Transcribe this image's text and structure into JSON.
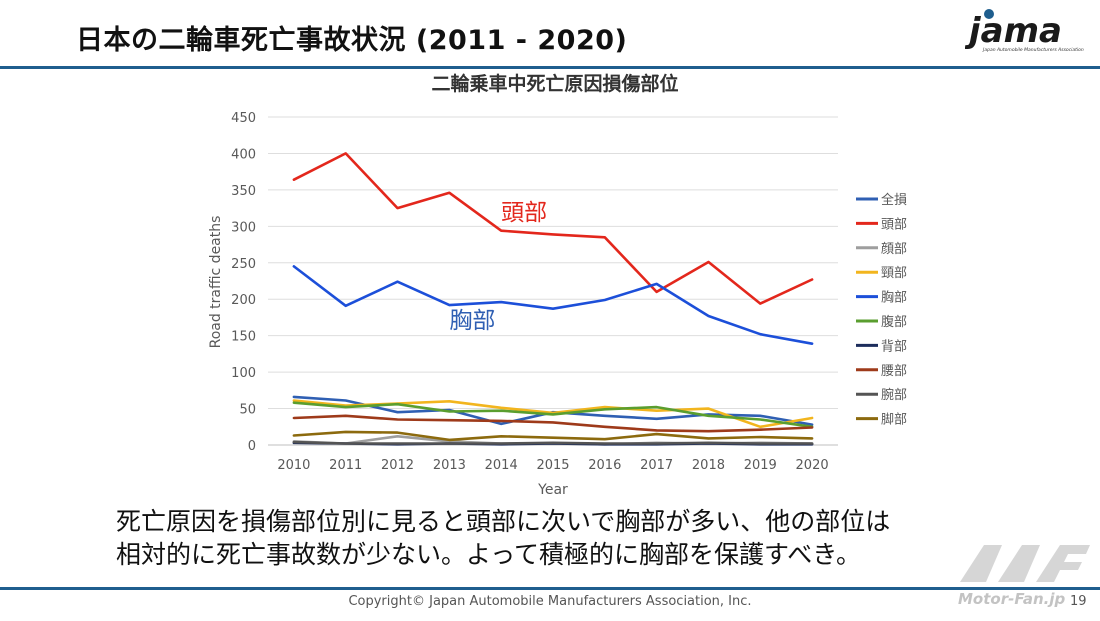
{
  "slide": {
    "title": "日本の二輪車死亡事故状況 (2011 - 2020)",
    "logo_text": "jama",
    "logo_subtext": "Japan Automobile Manufacturers Association",
    "caption_line1": "死亡原因を損傷部位別に見ると頭部に次いで胸部が多い、他の部位は",
    "caption_line2": "相対的に死亡事故数が少ない。よって積極的に胸部を保護すべき。",
    "footer": "Copyright© Japan Automobile Manufacturers Association, Inc.",
    "page_number": "19",
    "watermark": "Motor-Fan.jp"
  },
  "colors": {
    "rule": "#1f5e8e"
  },
  "chart_data": {
    "type": "line",
    "title": "二輪乗車中死亡原因損傷部位",
    "xlabel": "Year",
    "ylabel": "Road traffic deaths",
    "ylim": [
      0,
      450
    ],
    "yticks": [
      0,
      50,
      100,
      150,
      200,
      250,
      300,
      350,
      400,
      450
    ],
    "grid": true,
    "legend": "right",
    "x": [
      "2010",
      "2011",
      "2012",
      "2013",
      "2014",
      "2015",
      "2016",
      "2017",
      "2018",
      "2019",
      "2020"
    ],
    "series": [
      {
        "name": "全損",
        "color": "#2f5fb3",
        "values": [
          66,
          61,
          45,
          48,
          29,
          45,
          40,
          36,
          42,
          40,
          28
        ]
      },
      {
        "name": "頭部",
        "color": "#e3271c",
        "values": [
          364,
          400,
          325,
          346,
          294,
          289,
          285,
          210,
          251,
          194,
          227
        ]
      },
      {
        "name": "顔部",
        "color": "#9e9e9e",
        "values": [
          5,
          2,
          12,
          5,
          2,
          2,
          1,
          3,
          2,
          3,
          2
        ]
      },
      {
        "name": "頸部",
        "color": "#f2b51e",
        "values": [
          61,
          54,
          57,
          60,
          51,
          44,
          52,
          47,
          50,
          25,
          37
        ]
      },
      {
        "name": "胸部",
        "color": "#1c4fd9",
        "values": [
          245,
          191,
          224,
          192,
          196,
          187,
          199,
          221,
          177,
          152,
          139
        ]
      },
      {
        "name": "腹部",
        "color": "#5a9e2f",
        "values": [
          58,
          52,
          56,
          46,
          47,
          42,
          49,
          52,
          40,
          35,
          25
        ]
      },
      {
        "name": "背部",
        "color": "#1c2d5c",
        "values": [
          3,
          2,
          1,
          2,
          1,
          2,
          1,
          1,
          2,
          1,
          1
        ]
      },
      {
        "name": "腰部",
        "color": "#9e3a1a",
        "values": [
          37,
          40,
          35,
          34,
          33,
          31,
          25,
          20,
          19,
          21,
          24
        ]
      },
      {
        "name": "腕部",
        "color": "#545454",
        "values": [
          4,
          2,
          2,
          2,
          2,
          3,
          2,
          2,
          3,
          2,
          2
        ]
      },
      {
        "name": "脚部",
        "color": "#8c6a0e",
        "values": [
          13,
          18,
          17,
          7,
          12,
          10,
          8,
          15,
          9,
          11,
          9
        ]
      }
    ],
    "annotations": [
      {
        "text": "頭部",
        "color": "#e3271c",
        "x": "2014",
        "y": 318
      },
      {
        "text": "胸部",
        "color": "#2f5fb3",
        "x": "2013",
        "y": 170
      }
    ]
  }
}
